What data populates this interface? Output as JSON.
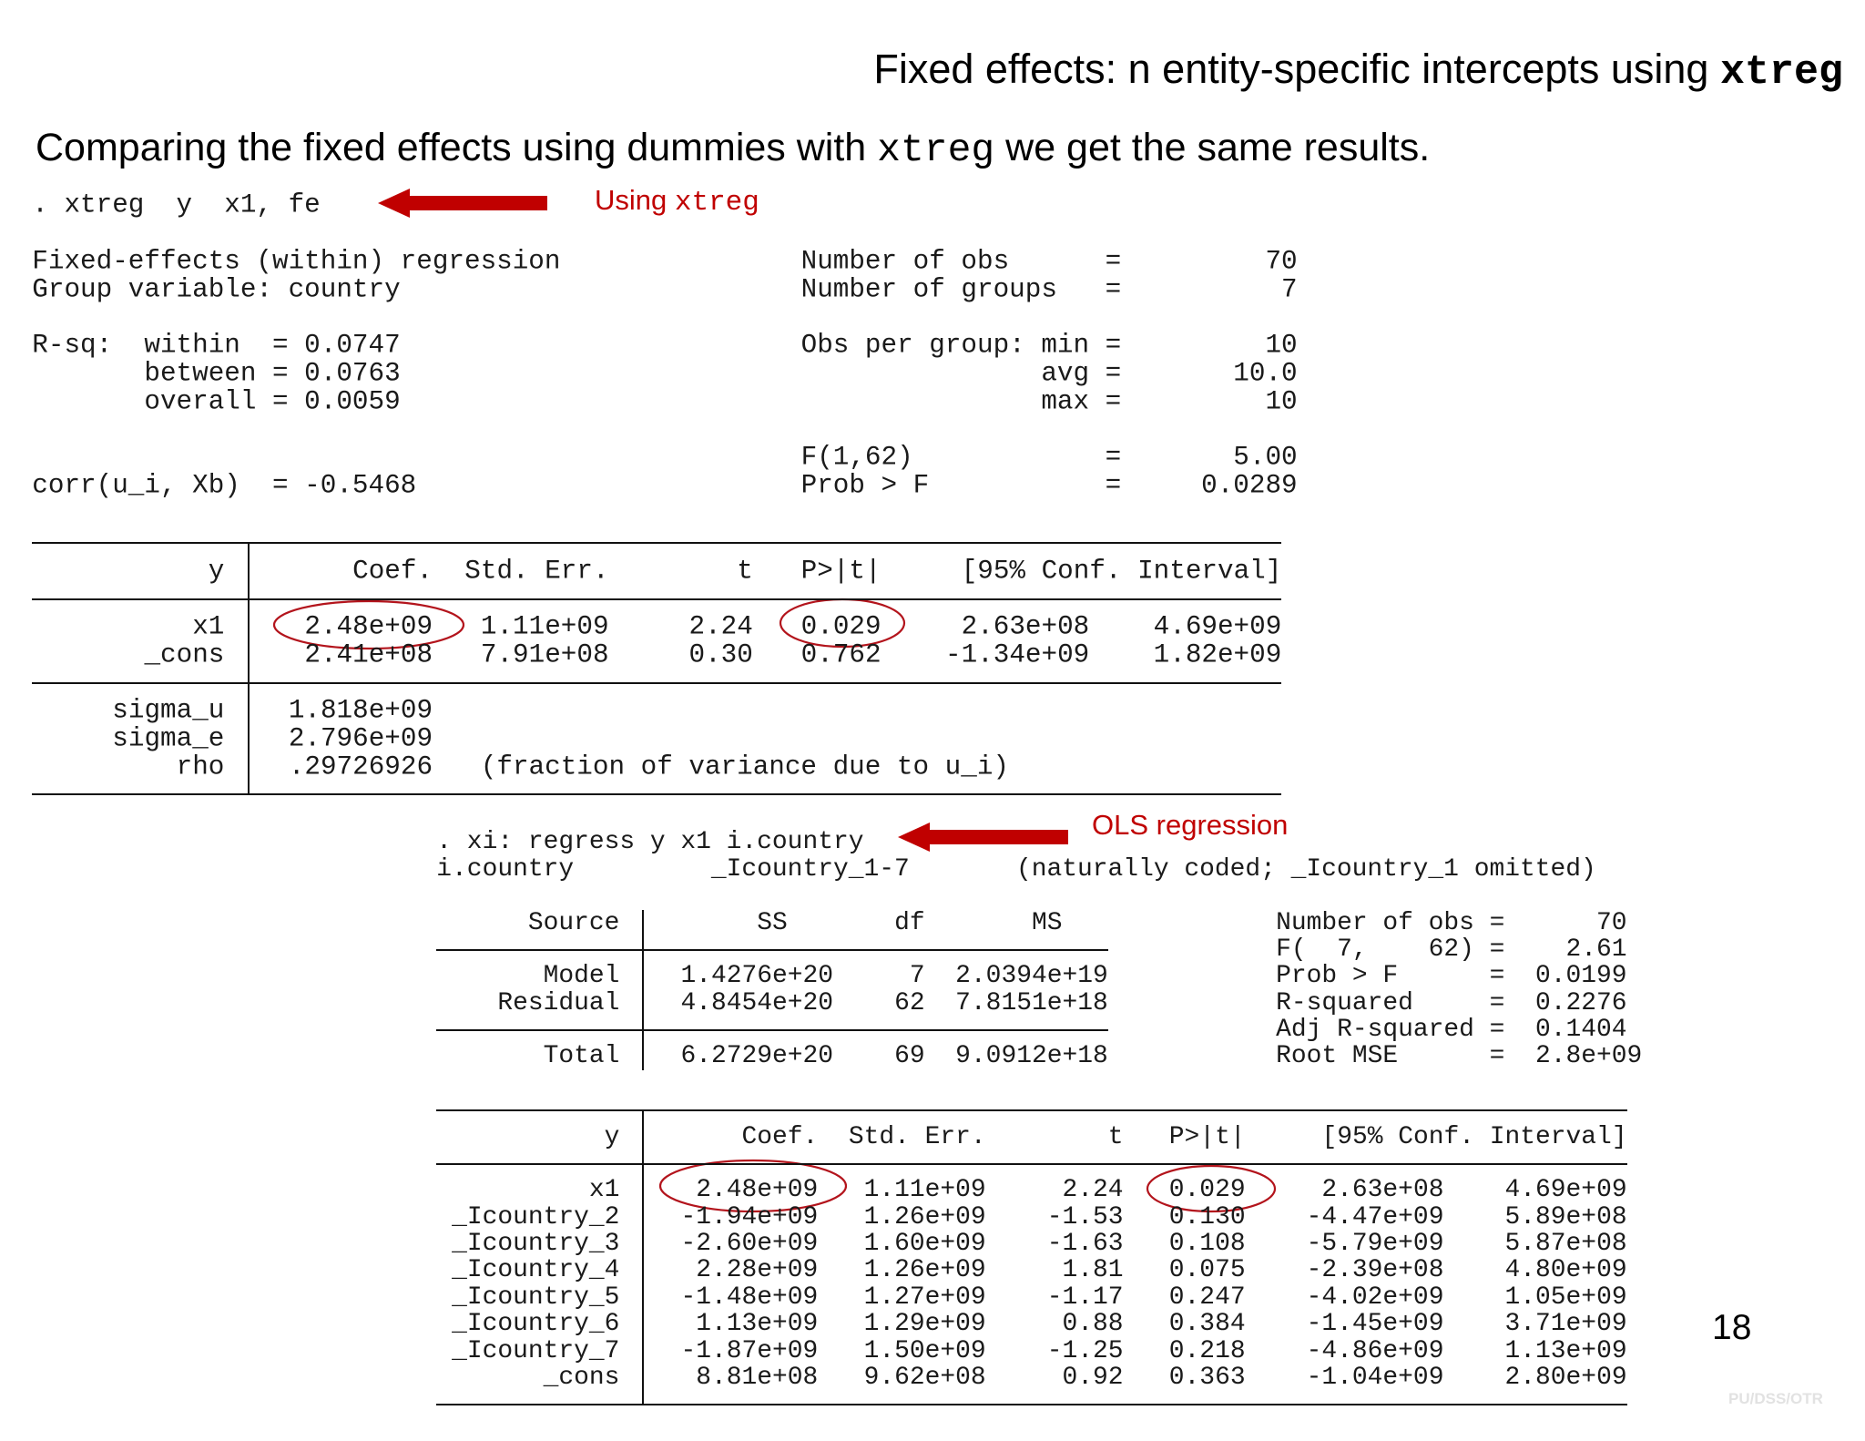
{
  "title": {
    "text": "Fixed effects: n entity-specific intercepts using ",
    "code": "xtreg"
  },
  "subtitle": {
    "before": "Comparing the fixed effects using dummies with ",
    "code": "xtreg",
    "after": " we get the same results."
  },
  "annotations": [
    {
      "text": "Using ",
      "code": "xtreg"
    },
    {
      "text": "OLS regression"
    }
  ],
  "xtreg_output": {
    "command": ". xtreg  y  x1, fe",
    "summary_left": [
      "Fixed-effects (within) regression",
      "Group variable: country",
      "R-sq:  within  = 0.0747",
      "       between = 0.0763",
      "       overall = 0.0059",
      "corr(u_i, Xb)  = -0.5468"
    ],
    "summary_right": [
      "Number of obs      =         70",
      "Number of groups   =          7",
      "Obs per group: min =         10",
      "               avg =       10.0",
      "               max =         10",
      "F(1,62)            =       5.00",
      "Prob > F           =     0.0289"
    ],
    "coef_table": {
      "header": [
        "y",
        "Coef.",
        "Std. Err.",
        "t",
        "P>|t|",
        "[95% Conf. Interval]"
      ],
      "rows": [
        {
          "label": "x1",
          "cells": [
            "2.48e+09",
            "1.11e+09",
            "2.24",
            "0.029",
            "2.63e+08",
            "4.69e+09"
          ]
        },
        {
          "label": "_cons",
          "cells": [
            "2.41e+08",
            "7.91e+08",
            "0.30",
            "0.762",
            "-1.34e+09",
            "1.82e+09"
          ]
        }
      ]
    },
    "variance_rows": [
      {
        "label": "sigma_u",
        "value": "1.818e+09"
      },
      {
        "label": "sigma_e",
        "value": "2.796e+09"
      },
      {
        "label": "rho",
        "value": ".29726926",
        "note": "(fraction of variance due to u_i)"
      }
    ]
  },
  "ols_output": {
    "command": ". xi: regress y x1 i.country",
    "expansion": "i.country         _Icountry_1-7       (naturally coded; _Icountry_1 omitted)",
    "anova": {
      "header": [
        "Source",
        "SS",
        "df",
        "MS"
      ],
      "rows": [
        {
          "label": "Model",
          "cells": [
            "1.4276e+20",
            "7",
            "2.0394e+19"
          ]
        },
        {
          "label": "Residual",
          "cells": [
            "4.8454e+20",
            "62",
            "7.8151e+18"
          ]
        },
        {
          "label": "Total",
          "cells": [
            "6.2729e+20",
            "69",
            "9.0912e+18"
          ]
        }
      ]
    },
    "fit_stats": [
      "Number of obs =      70",
      "F(  7,    62) =    2.61",
      "Prob > F      =  0.0199",
      "R-squared     =  0.2276",
      "Adj R-squared =  0.1404",
      "Root MSE      =  2.8e+09"
    ],
    "coef_table": {
      "header": [
        "y",
        "Coef.",
        "Std. Err.",
        "t",
        "P>|t|",
        "[95% Conf. Interval]"
      ],
      "rows": [
        {
          "label": "x1",
          "cells": [
            "2.48e+09",
            "1.11e+09",
            "2.24",
            "0.029",
            "2.63e+08",
            "4.69e+09"
          ]
        },
        {
          "label": "_Icountry_2",
          "cells": [
            "-1.94e+09",
            "1.26e+09",
            "-1.53",
            "0.130",
            "-4.47e+09",
            "5.89e+08"
          ]
        },
        {
          "label": "_Icountry_3",
          "cells": [
            "-2.60e+09",
            "1.60e+09",
            "-1.63",
            "0.108",
            "-5.79e+09",
            "5.87e+08"
          ]
        },
        {
          "label": "_Icountry_4",
          "cells": [
            "2.28e+09",
            "1.26e+09",
            "1.81",
            "0.075",
            "-2.39e+08",
            "4.80e+09"
          ]
        },
        {
          "label": "_Icountry_5",
          "cells": [
            "-1.48e+09",
            "1.27e+09",
            "-1.17",
            "0.247",
            "-4.02e+09",
            "1.05e+09"
          ]
        },
        {
          "label": "_Icountry_6",
          "cells": [
            "1.13e+09",
            "1.29e+09",
            "0.88",
            "0.384",
            "-1.45e+09",
            "3.71e+09"
          ]
        },
        {
          "label": "_Icountry_7",
          "cells": [
            "-1.87e+09",
            "1.50e+09",
            "-1.25",
            "0.218",
            "-4.86e+09",
            "1.13e+09"
          ]
        },
        {
          "label": "_cons",
          "cells": [
            "8.81e+08",
            "9.62e+08",
            "0.92",
            "0.363",
            "-1.04e+09",
            "2.80e+09"
          ]
        }
      ]
    }
  },
  "page_number": "18",
  "footer": "PU/DSS/OTR"
}
